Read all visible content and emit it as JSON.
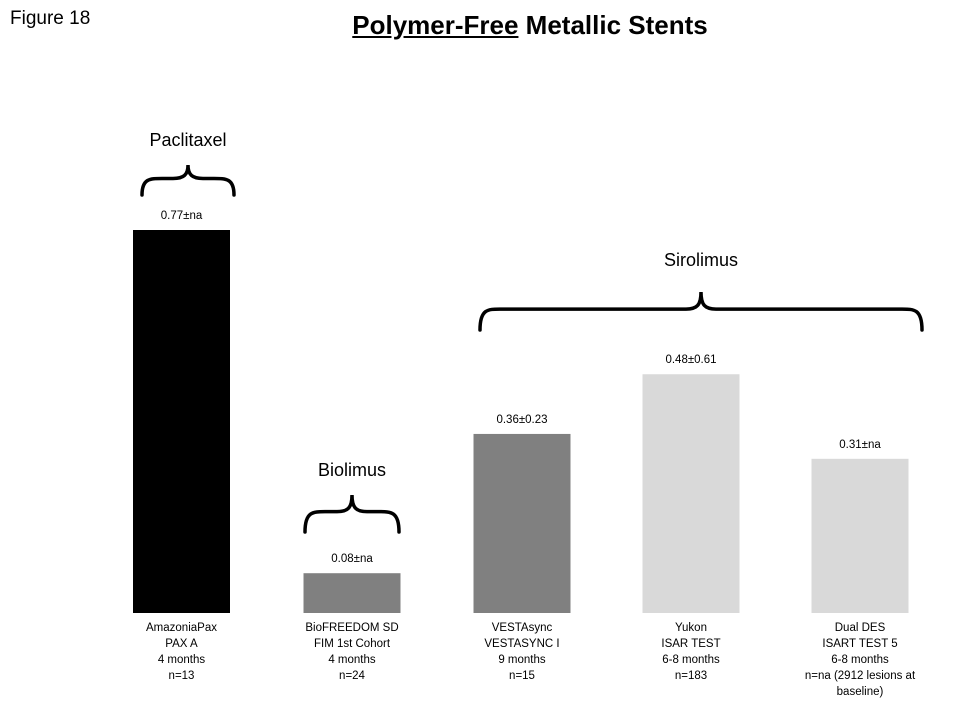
{
  "figure_label": "Figure 18",
  "title_underlined": "Polymer-Free",
  "title_rest": " Metallic Stents",
  "chart_data": {
    "type": "bar",
    "title": "Polymer-Free Metallic Stents",
    "categories": [
      [
        "AmazoniaPax",
        "PAX A",
        "4 months",
        "n=13"
      ],
      [
        "BioFREEDOM SD",
        "FIM 1st Cohort",
        "4 months",
        "n=24"
      ],
      [
        "VESTAsync",
        "VESTASYNC  I",
        "9 months",
        "n=15"
      ],
      [
        "Yukon",
        "ISAR TEST",
        "6-8 months",
        "n=183"
      ],
      [
        "Dual DES",
        "ISART TEST 5",
        "6-8 months",
        "n=na (2912 lesions at",
        "baseline)"
      ]
    ],
    "values": [
      0.77,
      0.08,
      0.36,
      0.48,
      0.31
    ],
    "data_labels": [
      "0.77±na",
      "0.08±na",
      "0.36±0.23",
      "0.48±0.61",
      "0.31±na"
    ],
    "colors": [
      "#000000",
      "#808080",
      "#808080",
      "#d9d9d9",
      "#d9d9d9"
    ],
    "groups": [
      {
        "label": "Paclitaxel",
        "bars": [
          0
        ]
      },
      {
        "label": "Biolimus",
        "bars": [
          1
        ]
      },
      {
        "label": "Sirolimus",
        "bars": [
          2,
          3,
          4
        ]
      }
    ],
    "ylim": [
      0,
      0.77
    ],
    "grid": false,
    "axes_visible": false
  }
}
